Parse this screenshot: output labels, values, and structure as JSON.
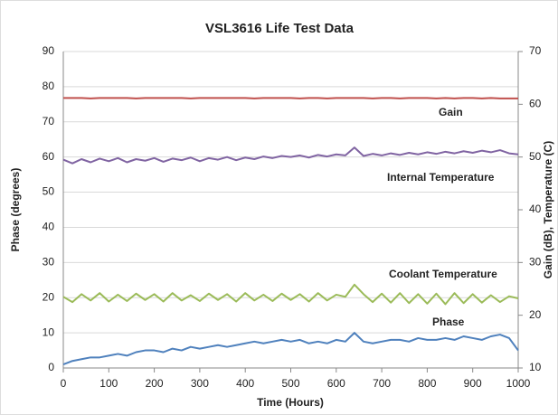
{
  "chart_data": {
    "type": "line",
    "title": "VSL3616 Life Test Data",
    "x_label": "Time (Hours)",
    "y_label": "Phase (degrees)",
    "y2_label": "Gain (dB), Temperature (C)",
    "x": [
      0,
      20,
      40,
      60,
      80,
      100,
      120,
      140,
      160,
      180,
      200,
      220,
      240,
      260,
      280,
      300,
      320,
      340,
      360,
      380,
      400,
      420,
      440,
      460,
      480,
      500,
      520,
      540,
      560,
      580,
      600,
      620,
      640,
      660,
      680,
      700,
      720,
      740,
      760,
      780,
      800,
      820,
      840,
      860,
      880,
      900,
      920,
      940,
      960,
      980,
      1000
    ],
    "series": [
      {
        "name": "Gain",
        "color": "#c0504d",
        "axis": "y2",
        "values": [
          61.2,
          61.2,
          61.2,
          61.1,
          61.2,
          61.2,
          61.2,
          61.2,
          61.1,
          61.2,
          61.2,
          61.2,
          61.2,
          61.2,
          61.1,
          61.2,
          61.2,
          61.2,
          61.2,
          61.2,
          61.2,
          61.1,
          61.2,
          61.2,
          61.2,
          61.2,
          61.1,
          61.2,
          61.2,
          61.1,
          61.2,
          61.2,
          61.2,
          61.2,
          61.1,
          61.2,
          61.2,
          61.1,
          61.2,
          61.2,
          61.2,
          61.1,
          61.2,
          61.1,
          61.2,
          61.2,
          61.1,
          61.2,
          61.1,
          61.1,
          61.1
        ]
      },
      {
        "name": "Internal Temperature",
        "color": "#8064a2",
        "axis": "y2",
        "values": [
          49.5,
          48.8,
          49.6,
          49,
          49.7,
          49.2,
          49.8,
          49,
          49.6,
          49.3,
          49.8,
          49.1,
          49.7,
          49.4,
          49.9,
          49.2,
          49.8,
          49.5,
          50,
          49.4,
          49.9,
          49.6,
          50.1,
          49.8,
          50.2,
          50,
          50.3,
          49.9,
          50.4,
          50.1,
          50.5,
          50.3,
          51.8,
          50.2,
          50.6,
          50.3,
          50.7,
          50.4,
          50.8,
          50.5,
          50.9,
          50.6,
          51,
          50.7,
          51.1,
          50.8,
          51.2,
          50.9,
          51.3,
          50.7,
          50.5
        ]
      },
      {
        "name": "Coolant Temperature",
        "color": "#9bbb59",
        "axis": "y2",
        "values": [
          23.5,
          22.5,
          24,
          22.8,
          24.2,
          22.6,
          23.9,
          22.7,
          24.1,
          22.9,
          24,
          22.6,
          24.2,
          22.8,
          23.8,
          22.7,
          24.1,
          22.9,
          24,
          22.6,
          24.2,
          22.8,
          23.9,
          22.7,
          24.1,
          22.9,
          24,
          22.6,
          24.2,
          22.8,
          23.9,
          23.5,
          25.8,
          24,
          22.5,
          24.1,
          22.4,
          24.2,
          22.3,
          24,
          22.2,
          24.1,
          22.1,
          24.2,
          22.3,
          24,
          22.4,
          23.8,
          22.5,
          23.6,
          23.2
        ]
      },
      {
        "name": "Phase",
        "color": "#4f81bd",
        "values": [
          1,
          2,
          2.5,
          3,
          3,
          3.5,
          4,
          3.5,
          4.5,
          5,
          5,
          4.5,
          5.5,
          5,
          6,
          5.5,
          6,
          6.5,
          6,
          6.5,
          7,
          7.5,
          7,
          7.5,
          8,
          7.5,
          8,
          7,
          7.5,
          7,
          8,
          7.5,
          10,
          7.5,
          7,
          7.5,
          8,
          8,
          7.5,
          8.5,
          8,
          8,
          8.5,
          8,
          9,
          8.5,
          8,
          9,
          9.5,
          8.5,
          5
        ]
      }
    ],
    "xlim": [
      0,
      1000
    ],
    "xticks": [
      0,
      100,
      200,
      300,
      400,
      500,
      600,
      700,
      800,
      900,
      1000
    ],
    "ylim": [
      0,
      90
    ],
    "yticks": [
      0,
      10,
      20,
      30,
      40,
      50,
      60,
      70,
      80,
      90
    ],
    "y2lim": [
      10,
      70
    ],
    "y2ticks": [
      10,
      20,
      30,
      40,
      50,
      60,
      70
    ],
    "grid": true
  }
}
